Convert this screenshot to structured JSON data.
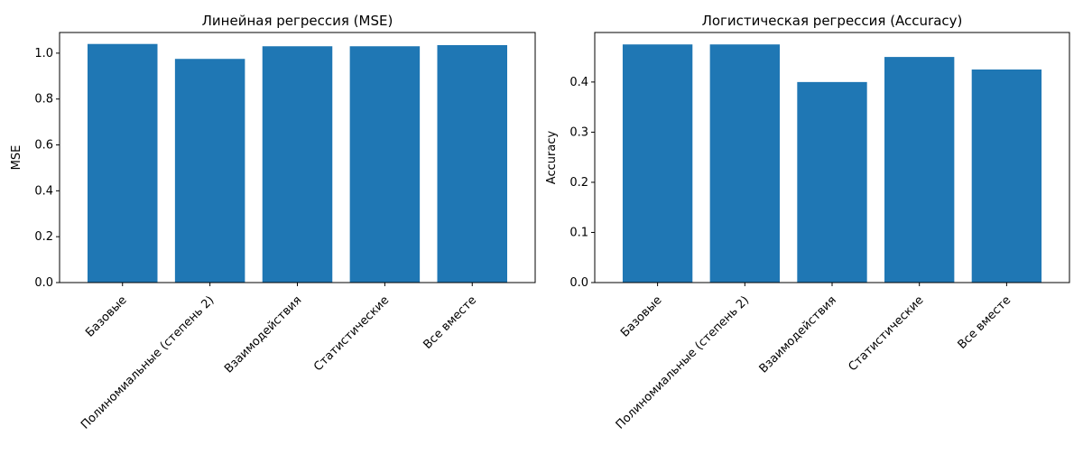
{
  "chart_data": [
    {
      "type": "bar",
      "title": "Линейная регрессия (MSE)",
      "xlabel": "",
      "ylabel": "MSE",
      "categories": [
        "Базовые",
        "Полиномиальные (степень 2)",
        "Взаимодействия",
        "Статистические",
        "Все вместе"
      ],
      "values": [
        1.04,
        0.975,
        1.03,
        1.03,
        1.035
      ],
      "ylim": [
        0,
        1.09
      ],
      "yticks": [
        "0.0",
        "0.2",
        "0.4",
        "0.6",
        "0.8",
        "1.0"
      ],
      "grid": false,
      "bar_color": "#1f77b4"
    },
    {
      "type": "bar",
      "title": "Логистическая регрессия (Accuracy)",
      "xlabel": "",
      "ylabel": "Accuracy",
      "categories": [
        "Базовые",
        "Полиномиальные (степень 2)",
        "Взаимодействия",
        "Статистические",
        "Все вместе"
      ],
      "values": [
        0.475,
        0.475,
        0.4,
        0.45,
        0.425
      ],
      "ylim": [
        0,
        0.4988
      ],
      "yticks": [
        "0.0",
        "0.1",
        "0.2",
        "0.3",
        "0.4"
      ],
      "grid": false,
      "bar_color": "#1f77b4"
    }
  ]
}
